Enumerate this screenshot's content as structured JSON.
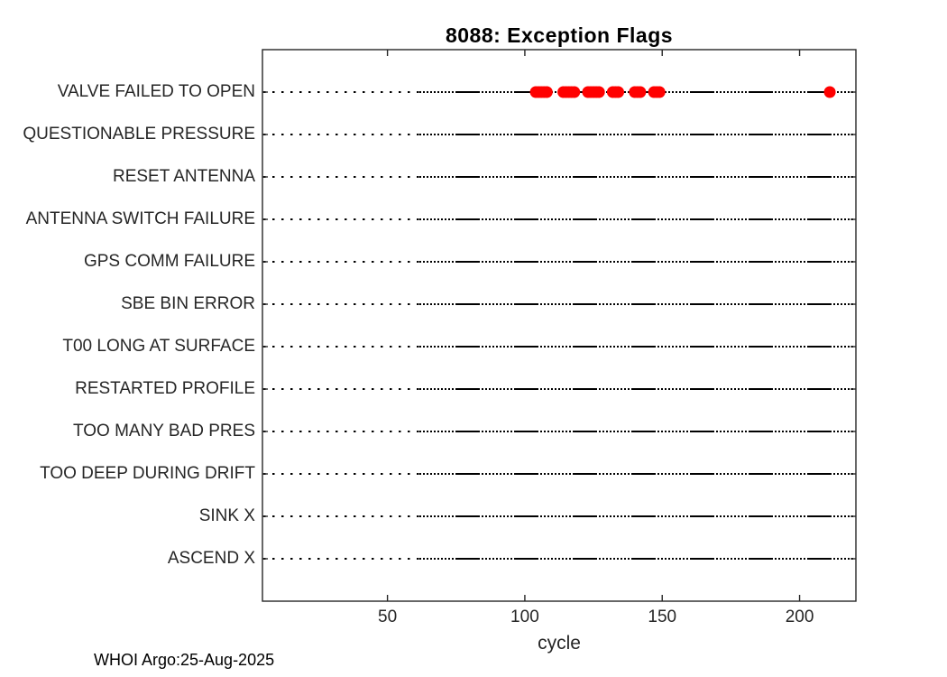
{
  "title": "8088: Exception Flags",
  "footer": "WHOI Argo:25-Aug-2025",
  "chart_data": {
    "type": "scatter",
    "title": "8088: Exception Flags",
    "xlabel": "cycle",
    "ylabel": "",
    "categories": [
      "VALVE FAILED TO OPEN",
      "QUESTIONABLE PRESSURE",
      "RESET ANTENNA",
      "ANTENNA SWITCH FAILURE",
      "GPS COMM FAILURE",
      "SBE BIN ERROR",
      "T00 LONG AT SURFACE",
      "RESTARTED PROFILE",
      "TOO MANY BAD PRES",
      "TOO DEEP DURING DRIFT",
      "SINK X",
      "ASCEND X"
    ],
    "xticks": [
      50,
      100,
      150,
      200
    ],
    "xlim": [
      4.5,
      220.5
    ],
    "grid": "dotted horizontal line per category row",
    "legend": "none",
    "series": [
      {
        "name": "VALVE FAILED TO OPEN events",
        "category": "VALVE FAILED TO OPEN",
        "marker": "filled-circle",
        "color": "#ff0000",
        "cycles": [
          104,
          105,
          106,
          107,
          108,
          114,
          115,
          116,
          117,
          118,
          123,
          124,
          125,
          126,
          127,
          132,
          133,
          134,
          140,
          141,
          142,
          147,
          148,
          149,
          211
        ]
      }
    ],
    "colors": {
      "marker": "#ff0000",
      "axis": "#262626",
      "row_line": "#000000",
      "background": "#ffffff"
    }
  }
}
